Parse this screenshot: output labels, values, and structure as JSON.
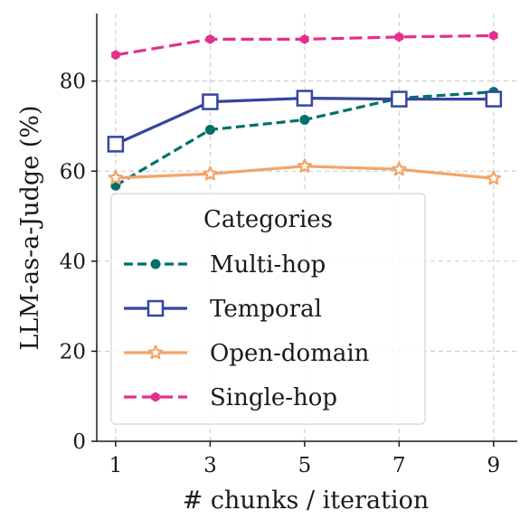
{
  "chart_data": {
    "type": "line",
    "x": [
      1,
      3,
      5,
      7,
      9
    ],
    "xlabel": "# chunks / iteration",
    "ylabel": "LLM-as-a-Judge (%)",
    "xlim": [
      0.6,
      9.5
    ],
    "ylim": [
      0,
      95
    ],
    "xticks": [
      "1",
      "3",
      "5",
      "7",
      "9"
    ],
    "yticks": [
      "0",
      "20",
      "40",
      "60",
      "80"
    ],
    "grid": true,
    "legend": {
      "title": "Categories",
      "placement": "lower-left"
    },
    "series": [
      {
        "name": "Multi-hop",
        "values": [
          56.8,
          69.2,
          71.4,
          76.2,
          77.6
        ],
        "color": "#00706a",
        "marker": "circle",
        "dash": "10 5"
      },
      {
        "name": "Temporal",
        "values": [
          66.0,
          75.4,
          76.2,
          76.0,
          76.0
        ],
        "color": "#3545a0",
        "marker": "square",
        "dash": ""
      },
      {
        "name": "Open-domain",
        "values": [
          58.5,
          59.4,
          61.1,
          60.4,
          58.4
        ],
        "color": "#f4a46a",
        "marker": "star",
        "dash": ""
      },
      {
        "name": "Single-hop",
        "values": [
          85.8,
          89.3,
          89.3,
          89.8,
          90.1
        ],
        "color": "#e3308c",
        "marker": "hexagon",
        "dash": "14 6"
      }
    ]
  }
}
